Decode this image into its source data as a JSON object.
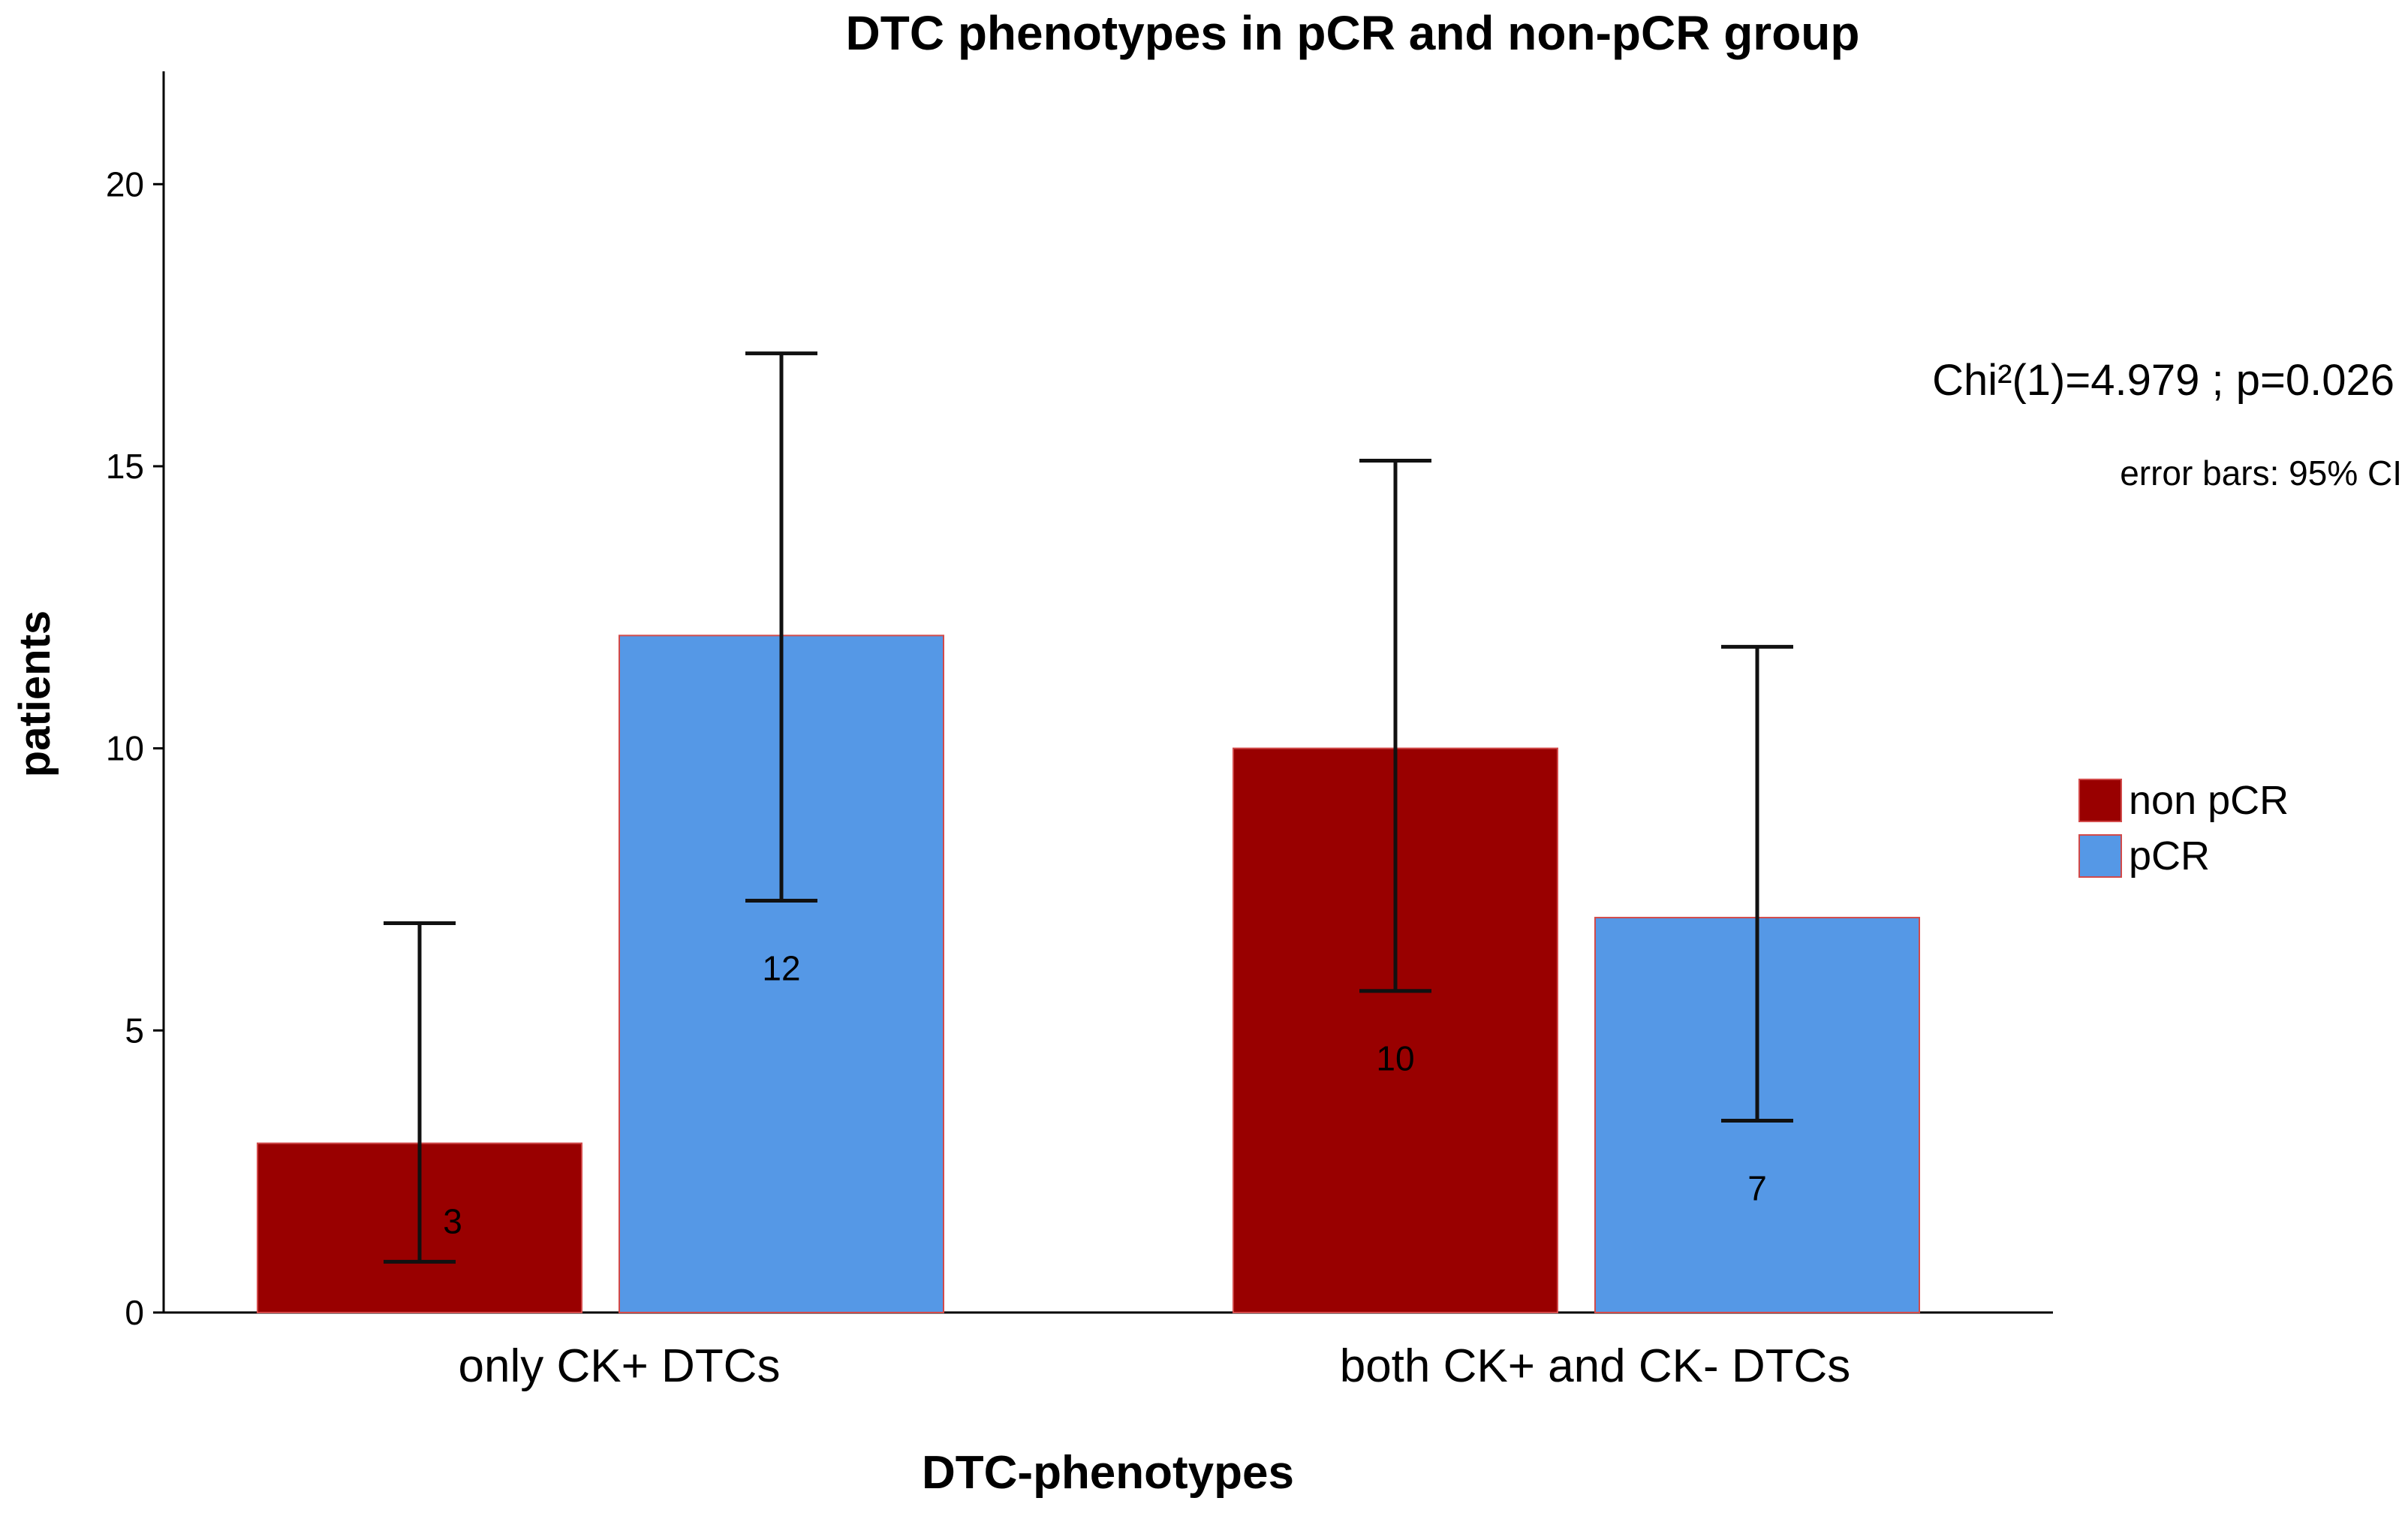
{
  "chart_data": {
    "type": "bar",
    "title": "DTC phenotypes in pCR and non-pCR group",
    "xlabel": "DTC-phenotypes",
    "ylabel": "patients",
    "ylim": [
      0,
      22
    ],
    "yticks": [
      0,
      5,
      10,
      15,
      20
    ],
    "categories": [
      "only CK+ DTCs",
      "both CK+ and CK- DTCs"
    ],
    "series": [
      {
        "name": "non pCR",
        "color": "#990000",
        "values": [
          3,
          10
        ],
        "ci_low": [
          0.9,
          5.7
        ],
        "ci_high": [
          6.9,
          15.1
        ]
      },
      {
        "name": "pCR",
        "color": "#5598e6",
        "values": [
          12,
          7
        ],
        "ci_low": [
          7.3,
          3.4
        ],
        "ci_high": [
          17.0,
          11.8
        ]
      }
    ],
    "data_labels": [
      [
        "3",
        "10"
      ],
      [
        "12",
        "7"
      ]
    ],
    "annotations": {
      "stat": "Chi²(1)=4.979 ; p=0.026",
      "error_bars": "error bars: 95% CI"
    },
    "legend": {
      "position": "right"
    }
  }
}
